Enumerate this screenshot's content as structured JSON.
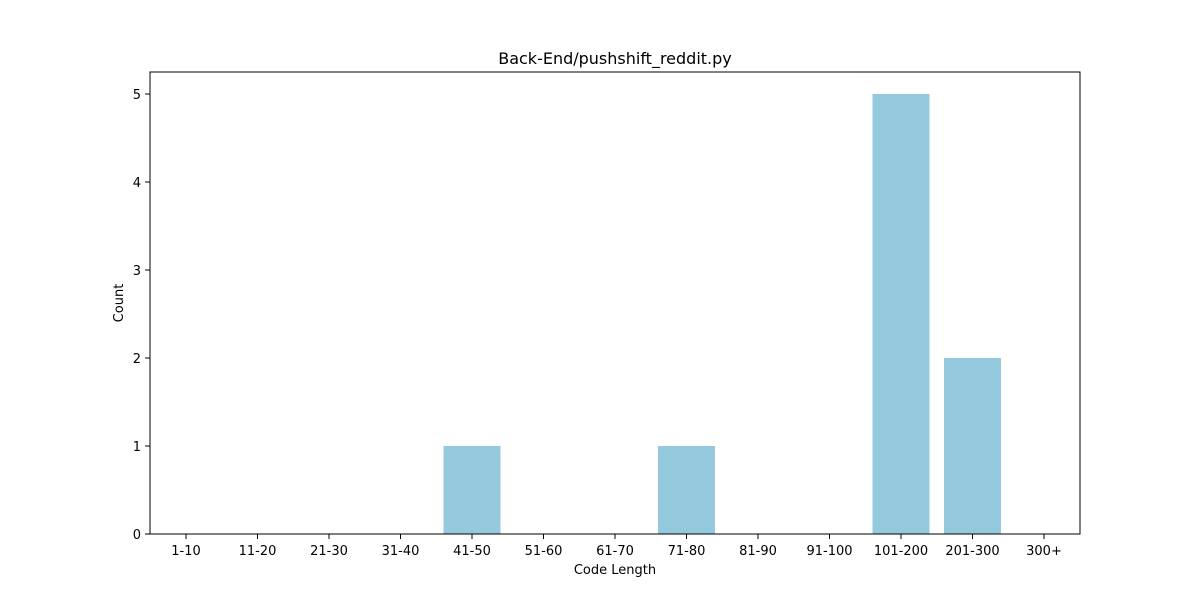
{
  "chart_data": {
    "type": "bar",
    "title": "Back-End/pushshift_reddit.py",
    "xlabel": "Code Length",
    "ylabel": "Count",
    "categories": [
      "1-10",
      "11-20",
      "21-30",
      "31-40",
      "41-50",
      "51-60",
      "61-70",
      "71-80",
      "81-90",
      "91-100",
      "101-200",
      "201-300",
      "300+"
    ],
    "values": [
      0,
      0,
      0,
      0,
      1,
      0,
      0,
      1,
      0,
      0,
      5,
      2,
      0
    ],
    "ylim": [
      0,
      5.25
    ],
    "yticks": [
      "0",
      "1",
      "2",
      "3",
      "4",
      "5"
    ],
    "bar_color": "#95c9dd",
    "grid": false,
    "legend": "none"
  }
}
